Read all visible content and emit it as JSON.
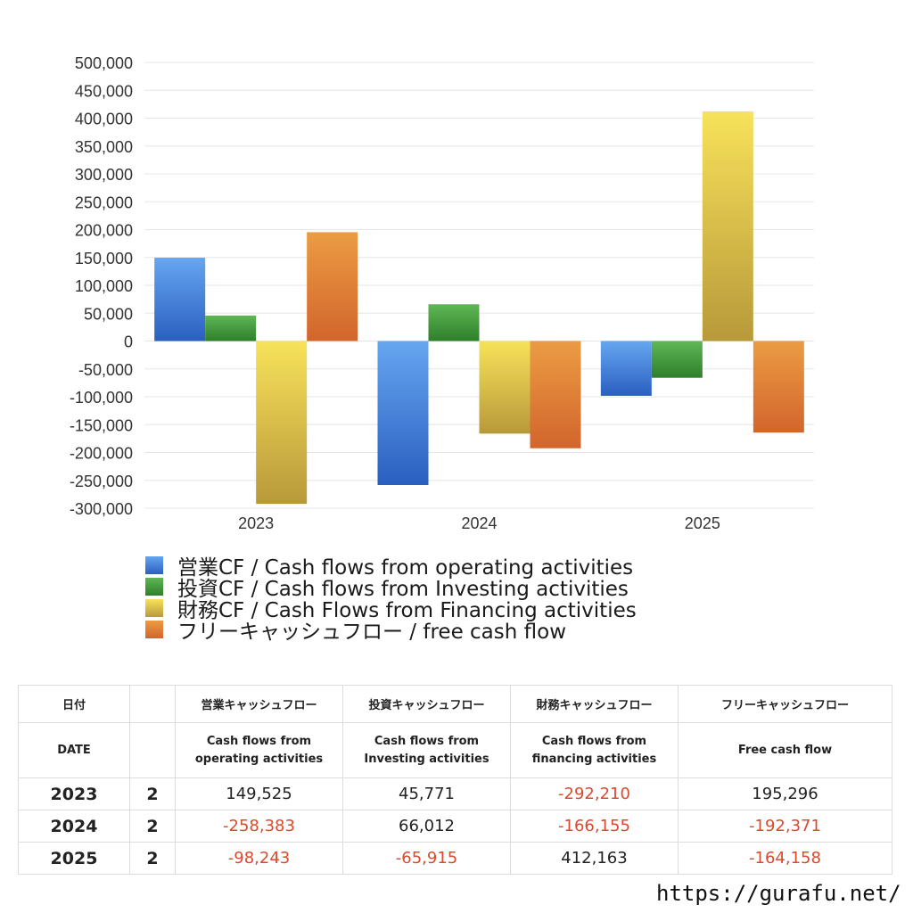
{
  "chart_data": {
    "type": "bar",
    "categories": [
      "2023",
      "2024",
      "2025"
    ],
    "series": [
      {
        "name": "営業CF / Cash flows from operating activities",
        "values": [
          149525,
          -258383,
          -98243
        ],
        "color_top": "#66a6f0",
        "color_bottom": "#2a5fc0"
      },
      {
        "name": "投資CF / Cash flows from Investing activities",
        "values": [
          45771,
          66012,
          -65915
        ],
        "color_top": "#5fb755",
        "color_bottom": "#2f7f2b"
      },
      {
        "name": "財務CF / Cash Flows from Financing activities",
        "values": [
          -292210,
          -166155,
          412163
        ],
        "color_top": "#f7e25a",
        "color_bottom": "#b8993a"
      },
      {
        "name": "フリーキャッシュフロー / free cash flow",
        "values": [
          195296,
          -192371,
          -164158
        ],
        "color_top": "#eb9c43",
        "color_bottom": "#d2652c"
      }
    ],
    "ylim": [
      -300000,
      500000
    ],
    "yticks": [
      500000,
      450000,
      400000,
      350000,
      300000,
      250000,
      200000,
      150000,
      100000,
      50000,
      0,
      -50000,
      -100000,
      -150000,
      -200000,
      -250000,
      -300000
    ],
    "ytick_labels": [
      "500,000",
      "450,000",
      "400,000",
      "350,000",
      "300,000",
      "250,000",
      "200,000",
      "150,000",
      "100,000",
      "50,000",
      "0",
      "-50,000",
      "-100,000",
      "-150,000",
      "-200,000",
      "-250,000",
      "-300,000"
    ],
    "grid": true,
    "legend": "bottom-left"
  },
  "table": {
    "header_ja": {
      "date": "日付",
      "op": "営業キャッシュフロー",
      "inv": "投資キャッシュフロー",
      "fin": "財務キャッシュフロー",
      "free": "フリーキャッシュフロー"
    },
    "header_en": {
      "date": "DATE",
      "op_1": "Cash flows from",
      "op_2": "operating activities",
      "inv_1": "Cash flows from",
      "inv_2": "Investing activities",
      "fin_1": "Cash flows from",
      "fin_2": "financing activities",
      "free": "Free cash flow"
    },
    "rows": [
      {
        "year": "2023",
        "q": "2",
        "op": "149,525",
        "inv": "45,771",
        "fin": "-292,210",
        "free": "195,296"
      },
      {
        "year": "2024",
        "q": "2",
        "op": "-258,383",
        "inv": "66,012",
        "fin": "-166,155",
        "free": "-192,371"
      },
      {
        "year": "2025",
        "q": "2",
        "op": "-98,243",
        "inv": "-65,915",
        "fin": "412,163",
        "free": "-164,158"
      }
    ],
    "negative_color": "#d94a2f"
  },
  "footer": {
    "url": "https://gurafu.net/"
  }
}
